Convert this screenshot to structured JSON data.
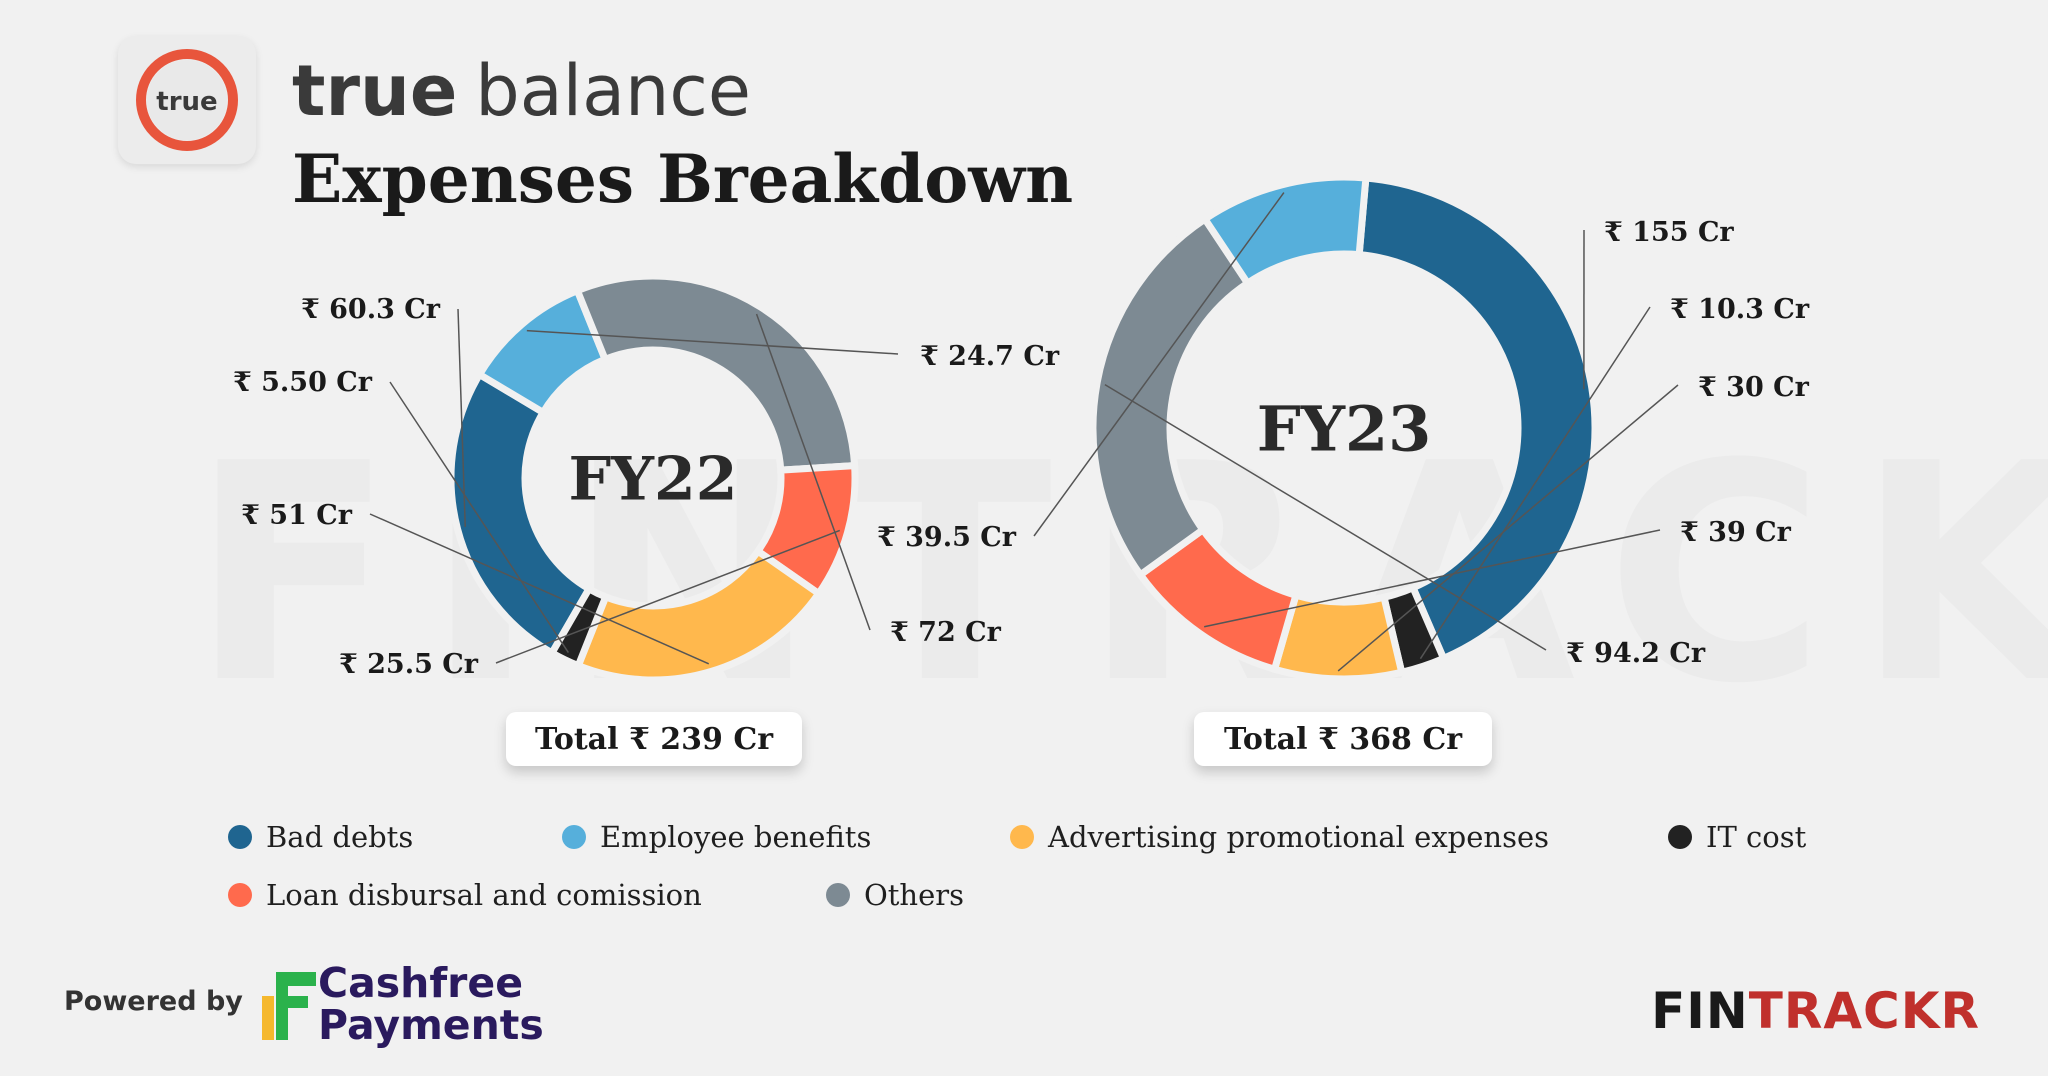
{
  "header": {
    "logo_text": "true",
    "brand_word_1": "true",
    "brand_word_2": "balance",
    "title": "Expenses Breakdown"
  },
  "watermark": "FINTRACKR",
  "colors": {
    "bad_debts": "#1f6590",
    "employee_benefits": "#56afdb",
    "advertising": "#ffb84d",
    "it_cost": "#222222",
    "loan_disbursal": "#ff6a4d",
    "others": "#7d8a93",
    "logo_accent": "#e8553c",
    "fintrackr_red": "#c0302c",
    "cashfree_green": "#2bb24c",
    "cashfree_yellow": "#f5b82e",
    "cashfree_navy": "#2a1a5e"
  },
  "chart_data": [
    {
      "type": "donut",
      "center_label": "FY22",
      "total_label": "Total ₹ 239 Cr",
      "unit": "₹ Cr",
      "slices": [
        {
          "category": "Bad debts",
          "value": 60.3,
          "label": "₹ 60.3 Cr"
        },
        {
          "category": "Employee benefits",
          "value": 24.7,
          "label": "₹ 24.7 Cr"
        },
        {
          "category": "Others",
          "value": 72,
          "label": "₹ 72 Cr"
        },
        {
          "category": "Loan disbursal and comission",
          "value": 25.5,
          "label": "₹ 25.5 Cr"
        },
        {
          "category": "Advertising promotional expenses",
          "value": 51,
          "label": "₹ 51 Cr"
        },
        {
          "category": "IT cost",
          "value": 5.5,
          "label": "₹ 5.50 Cr"
        }
      ]
    },
    {
      "type": "donut",
      "center_label": "FY23",
      "total_label": "Total ₹ 368 Cr",
      "unit": "₹ Cr",
      "slices": [
        {
          "category": "Bad debts",
          "value": 155,
          "label": "₹ 155 Cr"
        },
        {
          "category": "IT cost",
          "value": 10.3,
          "label": "₹ 10.3 Cr"
        },
        {
          "category": "Advertising promotional expenses",
          "value": 30,
          "label": "₹ 30 Cr"
        },
        {
          "category": "Loan disbursal and comission",
          "value": 39,
          "label": "₹ 39 Cr"
        },
        {
          "category": "Others",
          "value": 94.2,
          "label": "₹ 94.2 Cr"
        },
        {
          "category": "Employee benefits",
          "value": 39.5,
          "label": "₹ 39.5 Cr"
        }
      ]
    }
  ],
  "legend": [
    {
      "label": "Bad debts",
      "color_key": "bad_debts"
    },
    {
      "label": "Employee benefits",
      "color_key": "employee_benefits"
    },
    {
      "label": "Advertising promotional expenses",
      "color_key": "advertising"
    },
    {
      "label": "IT cost",
      "color_key": "it_cost"
    },
    {
      "label": "Loan disbursal and comission",
      "color_key": "loan_disbursal"
    },
    {
      "label": "Others",
      "color_key": "others"
    }
  ],
  "footer": {
    "powered_by": "Powered by",
    "cashfree_line_1": "Cashfree",
    "cashfree_line_2": "Payments",
    "fintrackr_part_1": "FIN",
    "fintrackr_part_2": "TRACKR"
  }
}
